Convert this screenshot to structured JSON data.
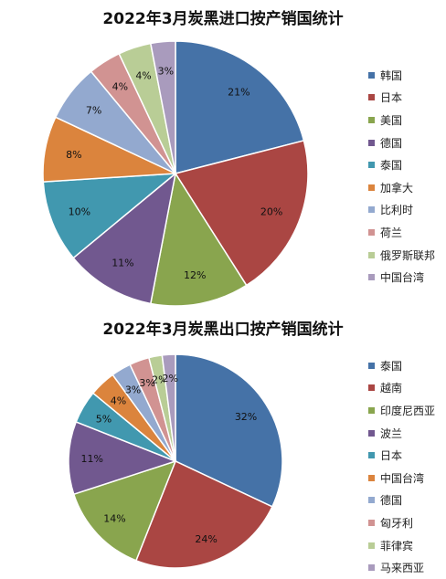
{
  "chart_data": [
    {
      "type": "pie",
      "title": "2022年3月炭黑进口按产销国统计",
      "legend_position": "right",
      "labels": [
        "韩国",
        "日本",
        "美国",
        "德国",
        "泰国",
        "加拿大",
        "比利时",
        "荷兰",
        "俄罗斯联邦",
        "中国台湾"
      ],
      "values": [
        21,
        20,
        12,
        11,
        10,
        8,
        7,
        4,
        4,
        3
      ],
      "value_labels": [
        "21%",
        "20%",
        "12%",
        "11%",
        "10%",
        "8%",
        "7%",
        "4%",
        "4%",
        "3%"
      ],
      "colors": [
        "#4572A7",
        "#AA4643",
        "#89A54E",
        "#71588F",
        "#4198AF",
        "#DB843D",
        "#93A9CF",
        "#D19392",
        "#B9CD96",
        "#A99BBD"
      ]
    },
    {
      "type": "pie",
      "title": "2022年3月炭黑出口按产销国统计",
      "legend_position": "right",
      "labels": [
        "泰国",
        "越南",
        "印度尼西亚",
        "波兰",
        "日本",
        "中国台湾",
        "德国",
        "匈牙利",
        "菲律宾",
        "马来西亚"
      ],
      "values": [
        32,
        24,
        14,
        11,
        5,
        4,
        3,
        3,
        2,
        2
      ],
      "value_labels": [
        "32%",
        "24%",
        "14%",
        "11%",
        "5%",
        "4%",
        "3%",
        "3%",
        "2%",
        "2%"
      ],
      "colors": [
        "#4572A7",
        "#AA4643",
        "#89A54E",
        "#71588F",
        "#4198AF",
        "#DB843D",
        "#93A9CF",
        "#D19392",
        "#B9CD96",
        "#A99BBD"
      ]
    }
  ]
}
